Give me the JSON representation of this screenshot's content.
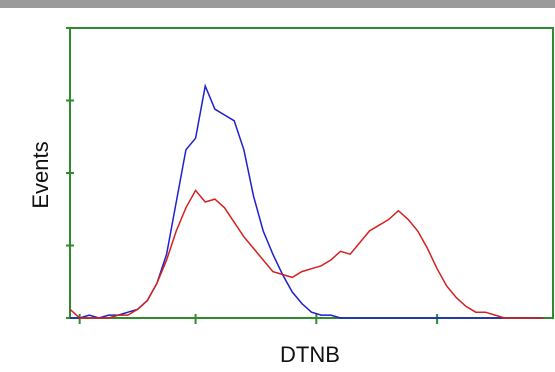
{
  "chart_data": {
    "type": "line",
    "x_label": "DTNB",
    "y_label": "Events",
    "x": [
      0,
      2,
      4,
      6,
      8,
      10,
      12,
      14,
      16,
      18,
      20,
      22,
      24,
      26,
      28,
      30,
      32,
      34,
      36,
      38,
      40,
      42,
      44,
      46,
      48,
      50,
      52,
      54,
      56,
      58,
      60,
      62,
      64,
      66,
      68,
      70,
      72,
      74,
      76,
      78,
      80,
      82,
      84,
      86,
      88,
      90,
      92,
      94,
      96,
      98
    ],
    "series": [
      {
        "color": "#1f1fcc",
        "values": [
          0,
          0,
          1,
          0,
          1,
          1,
          2,
          3,
          6,
          12,
          22,
          40,
          58,
          62,
          80,
          72,
          70,
          68,
          58,
          42,
          30,
          22,
          15,
          9,
          5,
          2,
          1,
          1,
          0,
          0,
          0,
          0,
          0,
          0,
          0,
          0,
          0,
          0,
          0,
          0,
          0,
          0,
          0,
          0,
          0,
          0,
          0,
          0,
          0,
          0
        ]
      },
      {
        "color": "#d42020",
        "values": [
          3,
          0,
          0,
          0,
          0,
          1,
          1,
          3,
          6,
          12,
          20,
          30,
          38,
          44,
          40,
          41,
          38,
          33,
          28,
          24,
          20,
          16,
          15,
          14,
          16,
          17,
          18,
          20,
          23,
          22,
          26,
          30,
          32,
          34,
          37,
          34,
          30,
          24,
          17,
          11,
          7,
          4,
          2,
          2,
          1,
          0,
          0,
          0,
          0,
          0
        ]
      }
    ],
    "xlim": [
      0,
      100
    ],
    "xticks": [
      2,
      26,
      51,
      76
    ],
    "ylim": [
      0,
      100
    ],
    "yticks": [
      0,
      25,
      50,
      75,
      100
    ],
    "frame_color": "#2e8b2e"
  }
}
